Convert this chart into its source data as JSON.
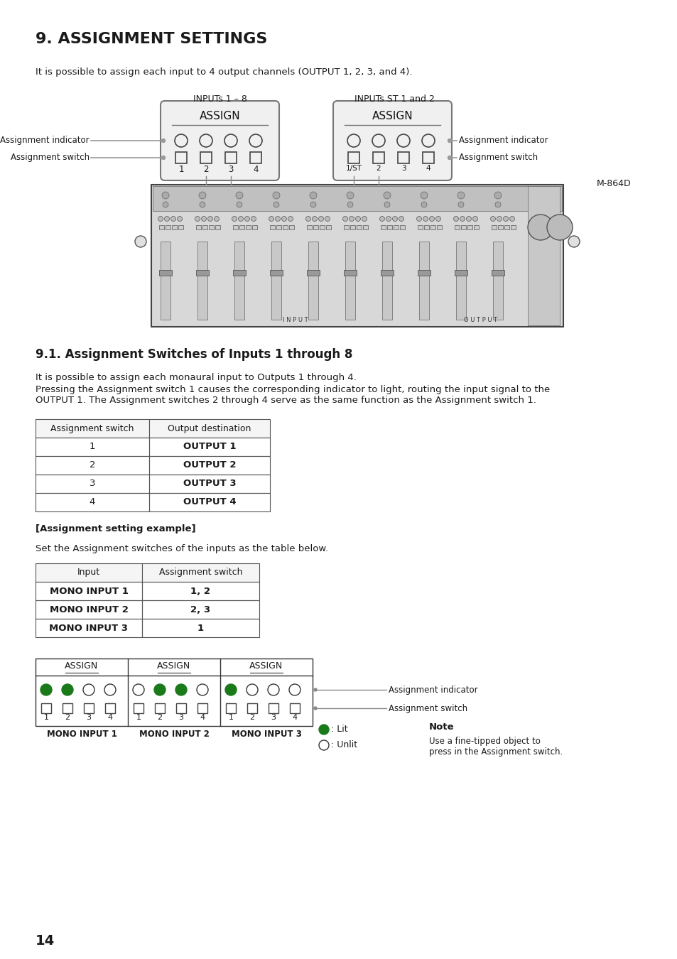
{
  "title": "9. ASSIGNMENT SETTINGS",
  "subtitle": "It is possible to assign each input to 4 output channels (OUTPUT 1, 2, 3, and 4).",
  "section2_title": "9.1. Assignment Switches of Inputs 1 through 8",
  "section2_para1": "It is possible to assign each monaural input to Outputs 1 through 4.",
  "section2_para2": "Pressing the Assignment switch 1 causes the corresponding indicator to light, routing the input signal to the\nOUTPUT 1. The Assignment switches 2 through 4 serve as the same function as the Assignment switch 1.",
  "table1_headers": [
    "Assignment switch",
    "Output destination"
  ],
  "table1_rows": [
    [
      "1",
      "OUTPUT 1"
    ],
    [
      "2",
      "OUTPUT 2"
    ],
    [
      "3",
      "OUTPUT 3"
    ],
    [
      "4",
      "OUTPUT 4"
    ]
  ],
  "assign_example_label": "[Assignment setting example]",
  "assign_example_para": "Set the Assignment switches of the inputs as the table below.",
  "table2_headers": [
    "Input",
    "Assignment switch"
  ],
  "table2_rows": [
    [
      "MONO INPUT 1",
      "1, 2"
    ],
    [
      "MONO INPUT 2",
      "2, 3"
    ],
    [
      "MONO INPUT 3",
      "1"
    ]
  ],
  "diagram_labels_top": [
    "INPUTs 1 – 8",
    "INPUTs ST 1 and 2"
  ],
  "assign_box_label": "ASSIGN",
  "left_labels": [
    "Assignment indicator",
    "Assignment switch"
  ],
  "right_labels": [
    "Assignment indicator",
    "Assignment switch"
  ],
  "model_label": "M-864D",
  "bottom_indicator_labels": [
    "MONO INPUT 1",
    "MONO INPUT 2",
    "MONO INPUT 3"
  ],
  "bottom_indicator_arrows": [
    "Assignment indicator",
    "Assignment switch"
  ],
  "note_title": "Note",
  "note_text": "Use a fine-tipped object to\npress in the Assignment switch.",
  "lit_label": ": Lit",
  "unlit_label": ": Unlit",
  "page_number": "14",
  "bg_color": "#ffffff",
  "text_color": "#1a1a1a",
  "green_color": "#1a7a1a",
  "gray_color": "#888888",
  "line_color": "#333333",
  "table_border": "#555555"
}
